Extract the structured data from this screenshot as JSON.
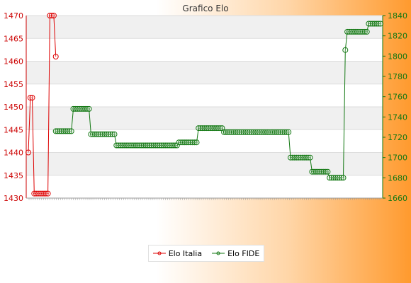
{
  "chart_data": {
    "type": "line",
    "title": "Grafico Elo",
    "xlabel": "",
    "ylabel": "",
    "grid": true,
    "legend_position": "bottom-center",
    "y_left": {
      "min": 1430,
      "max": 1470,
      "ticks": [
        1430,
        1435,
        1440,
        1445,
        1450,
        1455,
        1460,
        1465,
        1470
      ]
    },
    "y_right": {
      "min": 1660,
      "max": 1840,
      "ticks": [
        1660,
        1680,
        1700,
        1720,
        1740,
        1760,
        1780,
        1800,
        1820,
        1840
      ]
    },
    "x_count": 168,
    "series": [
      {
        "name": "Elo Italia",
        "axis": "left",
        "color": "#dd0000",
        "points": [
          [
            0,
            1440
          ],
          [
            1,
            1452
          ],
          [
            2,
            1452
          ],
          [
            3,
            1431
          ],
          [
            4,
            1431
          ],
          [
            5,
            1431
          ],
          [
            6,
            1431
          ],
          [
            7,
            1431
          ],
          [
            8,
            1431
          ],
          [
            9,
            1431
          ],
          [
            10,
            1431
          ],
          [
            11,
            1470
          ],
          [
            12,
            1470
          ],
          [
            13,
            1470
          ],
          [
            14,
            1461
          ]
        ]
      },
      {
        "name": "Elo FIDE",
        "axis": "right",
        "color": "#117711",
        "points": [
          [
            14,
            1726
          ],
          [
            22,
            1726
          ],
          [
            23,
            1748
          ],
          [
            31,
            1748
          ],
          [
            32,
            1723
          ],
          [
            44,
            1723
          ],
          [
            45,
            1712
          ],
          [
            76,
            1712
          ],
          [
            77,
            1715
          ],
          [
            86,
            1715
          ],
          [
            87,
            1729
          ],
          [
            99,
            1729
          ],
          [
            100,
            1725
          ],
          [
            133,
            1725
          ],
          [
            134,
            1700
          ],
          [
            144,
            1700
          ],
          [
            145,
            1686
          ],
          [
            153,
            1686
          ],
          [
            154,
            1680
          ],
          [
            161,
            1680
          ],
          [
            162,
            1806
          ],
          [
            163,
            1824
          ],
          [
            173,
            1824
          ],
          [
            174,
            1832
          ],
          [
            180,
            1832
          ]
        ]
      }
    ]
  }
}
